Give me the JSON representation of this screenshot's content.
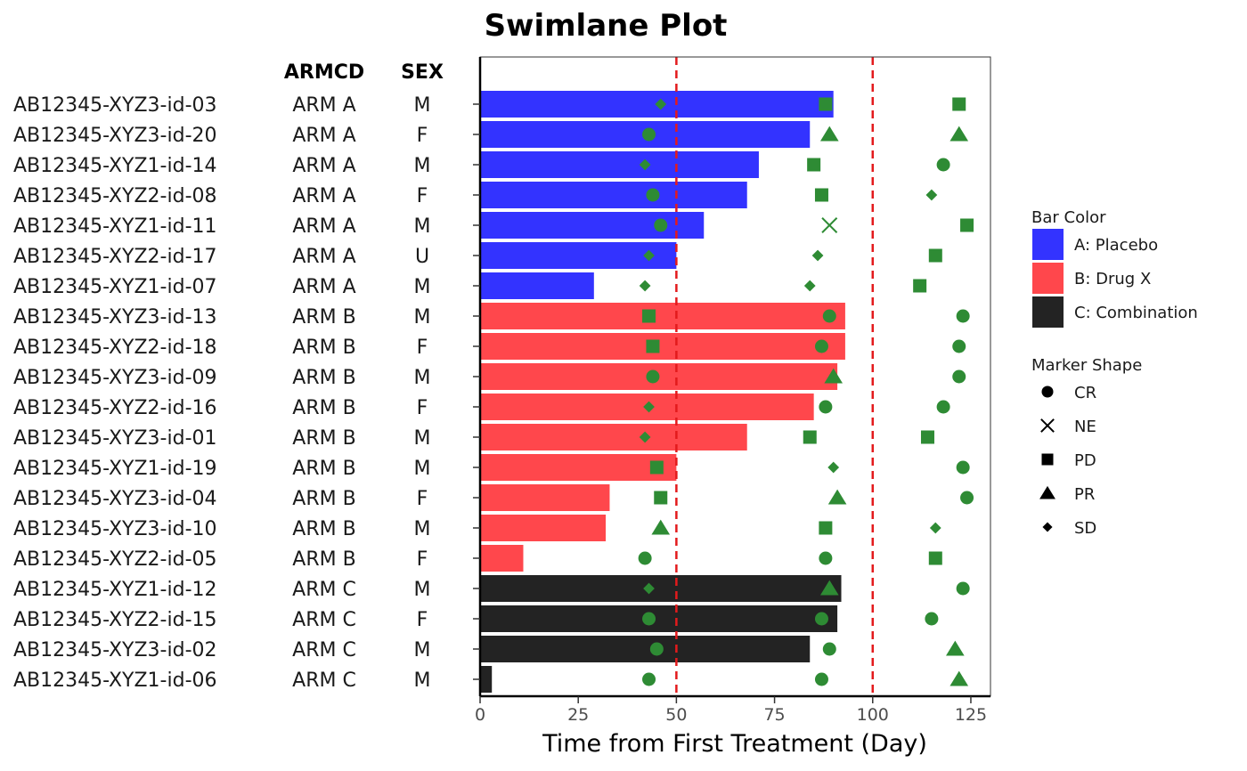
{
  "chart_data": {
    "type": "bar",
    "orientation": "horizontal",
    "title": "Swimlane Plot",
    "xlabel": "Time from First Treatment (Day)",
    "ylabel": "",
    "xlim": [
      0,
      130
    ],
    "xticks": [
      0,
      25,
      50,
      75,
      100,
      125
    ],
    "reference_lines": [
      50,
      100
    ],
    "reference_line_color": "#e31a1c",
    "grid": false,
    "columns": [
      "ARMCD",
      "SEX"
    ],
    "rows": [
      {
        "id": "AB12345-XYZ3-id-03",
        "armcd": "ARM A",
        "sex": "M",
        "value": 90,
        "group": "A",
        "markers": [
          {
            "x": 46,
            "s": "SD"
          },
          {
            "x": 88,
            "s": "PD"
          },
          {
            "x": 122,
            "s": "PD"
          }
        ]
      },
      {
        "id": "AB12345-XYZ3-id-20",
        "armcd": "ARM A",
        "sex": "F",
        "value": 84,
        "group": "A",
        "markers": [
          {
            "x": 43,
            "s": "CR"
          },
          {
            "x": 89,
            "s": "PR"
          },
          {
            "x": 122,
            "s": "PR"
          }
        ]
      },
      {
        "id": "AB12345-XYZ1-id-14",
        "armcd": "ARM A",
        "sex": "M",
        "value": 71,
        "group": "A",
        "markers": [
          {
            "x": 42,
            "s": "SD"
          },
          {
            "x": 85,
            "s": "PD"
          },
          {
            "x": 118,
            "s": "CR"
          }
        ]
      },
      {
        "id": "AB12345-XYZ2-id-08",
        "armcd": "ARM A",
        "sex": "F",
        "value": 68,
        "group": "A",
        "markers": [
          {
            "x": 44,
            "s": "CR"
          },
          {
            "x": 87,
            "s": "PD"
          },
          {
            "x": 115,
            "s": "SD"
          }
        ]
      },
      {
        "id": "AB12345-XYZ1-id-11",
        "armcd": "ARM A",
        "sex": "M",
        "value": 57,
        "group": "A",
        "markers": [
          {
            "x": 46,
            "s": "CR"
          },
          {
            "x": 89,
            "s": "NE"
          },
          {
            "x": 124,
            "s": "PD"
          }
        ]
      },
      {
        "id": "AB12345-XYZ2-id-17",
        "armcd": "ARM A",
        "sex": "U",
        "value": 50,
        "group": "A",
        "markers": [
          {
            "x": 43,
            "s": "SD"
          },
          {
            "x": 86,
            "s": "SD"
          },
          {
            "x": 116,
            "s": "PD"
          }
        ]
      },
      {
        "id": "AB12345-XYZ1-id-07",
        "armcd": "ARM A",
        "sex": "M",
        "value": 29,
        "group": "A",
        "markers": [
          {
            "x": 42,
            "s": "SD"
          },
          {
            "x": 84,
            "s": "SD"
          },
          {
            "x": 112,
            "s": "PD"
          }
        ]
      },
      {
        "id": "AB12345-XYZ3-id-13",
        "armcd": "ARM B",
        "sex": "M",
        "value": 93,
        "group": "B",
        "markers": [
          {
            "x": 43,
            "s": "PD"
          },
          {
            "x": 89,
            "s": "CR"
          },
          {
            "x": 123,
            "s": "CR"
          }
        ]
      },
      {
        "id": "AB12345-XYZ2-id-18",
        "armcd": "ARM B",
        "sex": "F",
        "value": 93,
        "group": "B",
        "markers": [
          {
            "x": 44,
            "s": "PD"
          },
          {
            "x": 87,
            "s": "CR"
          },
          {
            "x": 122,
            "s": "CR"
          }
        ]
      },
      {
        "id": "AB12345-XYZ3-id-09",
        "armcd": "ARM B",
        "sex": "M",
        "value": 91,
        "group": "B",
        "markers": [
          {
            "x": 44,
            "s": "CR"
          },
          {
            "x": 90,
            "s": "PR"
          },
          {
            "x": 122,
            "s": "CR"
          }
        ]
      },
      {
        "id": "AB12345-XYZ2-id-16",
        "armcd": "ARM B",
        "sex": "F",
        "value": 85,
        "group": "B",
        "markers": [
          {
            "x": 43,
            "s": "SD"
          },
          {
            "x": 88,
            "s": "CR"
          },
          {
            "x": 118,
            "s": "CR"
          }
        ]
      },
      {
        "id": "AB12345-XYZ3-id-01",
        "armcd": "ARM B",
        "sex": "M",
        "value": 68,
        "group": "B",
        "markers": [
          {
            "x": 42,
            "s": "SD"
          },
          {
            "x": 84,
            "s": "PD"
          },
          {
            "x": 114,
            "s": "PD"
          }
        ]
      },
      {
        "id": "AB12345-XYZ1-id-19",
        "armcd": "ARM B",
        "sex": "M",
        "value": 50,
        "group": "B",
        "markers": [
          {
            "x": 45,
            "s": "PD"
          },
          {
            "x": 90,
            "s": "SD"
          },
          {
            "x": 123,
            "s": "CR"
          }
        ]
      },
      {
        "id": "AB12345-XYZ3-id-04",
        "armcd": "ARM B",
        "sex": "F",
        "value": 33,
        "group": "B",
        "markers": [
          {
            "x": 46,
            "s": "PD"
          },
          {
            "x": 91,
            "s": "PR"
          },
          {
            "x": 124,
            "s": "CR"
          }
        ]
      },
      {
        "id": "AB12345-XYZ3-id-10",
        "armcd": "ARM B",
        "sex": "M",
        "value": 32,
        "group": "B",
        "markers": [
          {
            "x": 46,
            "s": "PR"
          },
          {
            "x": 88,
            "s": "PD"
          },
          {
            "x": 116,
            "s": "SD"
          }
        ]
      },
      {
        "id": "AB12345-XYZ2-id-05",
        "armcd": "ARM B",
        "sex": "F",
        "value": 11,
        "group": "B",
        "markers": [
          {
            "x": 42,
            "s": "CR"
          },
          {
            "x": 88,
            "s": "CR"
          },
          {
            "x": 116,
            "s": "PD"
          }
        ]
      },
      {
        "id": "AB12345-XYZ1-id-12",
        "armcd": "ARM C",
        "sex": "M",
        "value": 92,
        "group": "C",
        "markers": [
          {
            "x": 43,
            "s": "SD"
          },
          {
            "x": 89,
            "s": "PR"
          },
          {
            "x": 123,
            "s": "CR"
          }
        ]
      },
      {
        "id": "AB12345-XYZ2-id-15",
        "armcd": "ARM C",
        "sex": "F",
        "value": 91,
        "group": "C",
        "markers": [
          {
            "x": 43,
            "s": "CR"
          },
          {
            "x": 87,
            "s": "CR"
          },
          {
            "x": 115,
            "s": "CR"
          }
        ]
      },
      {
        "id": "AB12345-XYZ3-id-02",
        "armcd": "ARM C",
        "sex": "M",
        "value": 84,
        "group": "C",
        "markers": [
          {
            "x": 45,
            "s": "CR"
          },
          {
            "x": 89,
            "s": "CR"
          },
          {
            "x": 121,
            "s": "PR"
          }
        ]
      },
      {
        "id": "AB12345-XYZ1-id-06",
        "armcd": "ARM C",
        "sex": "M",
        "value": 3,
        "group": "C",
        "markers": [
          {
            "x": 43,
            "s": "CR"
          },
          {
            "x": 87,
            "s": "CR"
          },
          {
            "x": 122,
            "s": "PR"
          }
        ]
      }
    ],
    "marker_color": "#2e8b34",
    "legend": {
      "placement": "right",
      "bar_color": {
        "title": "Bar Color",
        "items": [
          {
            "key": "A",
            "label": "A: Placebo",
            "color": "#3333ff"
          },
          {
            "key": "B",
            "label": "B: Drug X",
            "color": "#ff474c"
          },
          {
            "key": "C",
            "label": "C: Combination",
            "color": "#232323"
          }
        ]
      },
      "marker_shape": {
        "title": "Marker Shape",
        "items": [
          {
            "label": "CR",
            "shape": "circle"
          },
          {
            "label": "NE",
            "shape": "cross"
          },
          {
            "label": "PD",
            "shape": "square"
          },
          {
            "label": "PR",
            "shape": "triangle"
          },
          {
            "label": "SD",
            "shape": "diamond"
          }
        ]
      }
    }
  }
}
